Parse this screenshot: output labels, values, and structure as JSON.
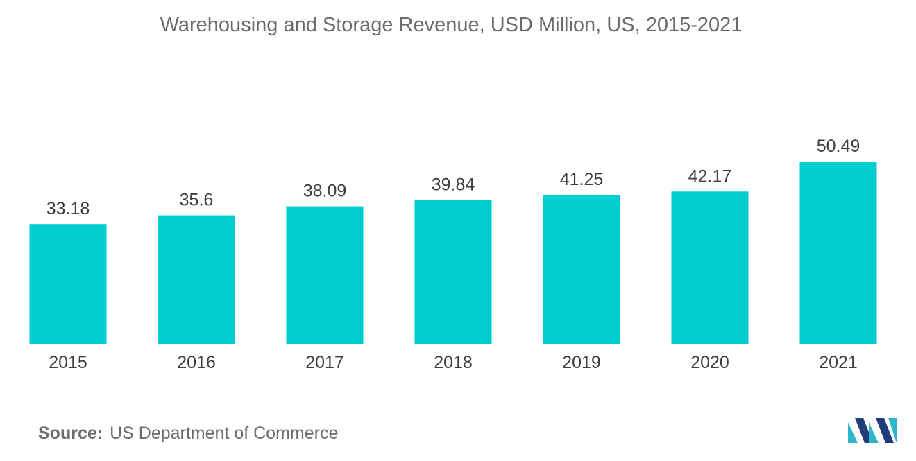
{
  "chart_data": {
    "type": "bar",
    "title": "Warehousing and Storage Revenue, USD Million, US, 2015-2021",
    "categories": [
      "2015",
      "2016",
      "2017",
      "2018",
      "2019",
      "2020",
      "2021"
    ],
    "values": [
      33.18,
      35.6,
      38.09,
      39.84,
      41.25,
      42.17,
      50.49
    ],
    "value_labels": [
      "33.18",
      "35.6",
      "38.09",
      "39.84",
      "41.25",
      "42.17",
      "50.49"
    ],
    "xlabel": "",
    "ylabel": "",
    "ylim": [
      0,
      50.49
    ],
    "grid": false,
    "legend": "none",
    "bar_color": "#00CED1"
  },
  "source": {
    "label": "Source:",
    "text": "US Department of Commerce"
  },
  "logo": {
    "icon": "mordor-intelligence-logo-icon",
    "colors": [
      "#1f3d7a",
      "#2fb5c8"
    ]
  }
}
